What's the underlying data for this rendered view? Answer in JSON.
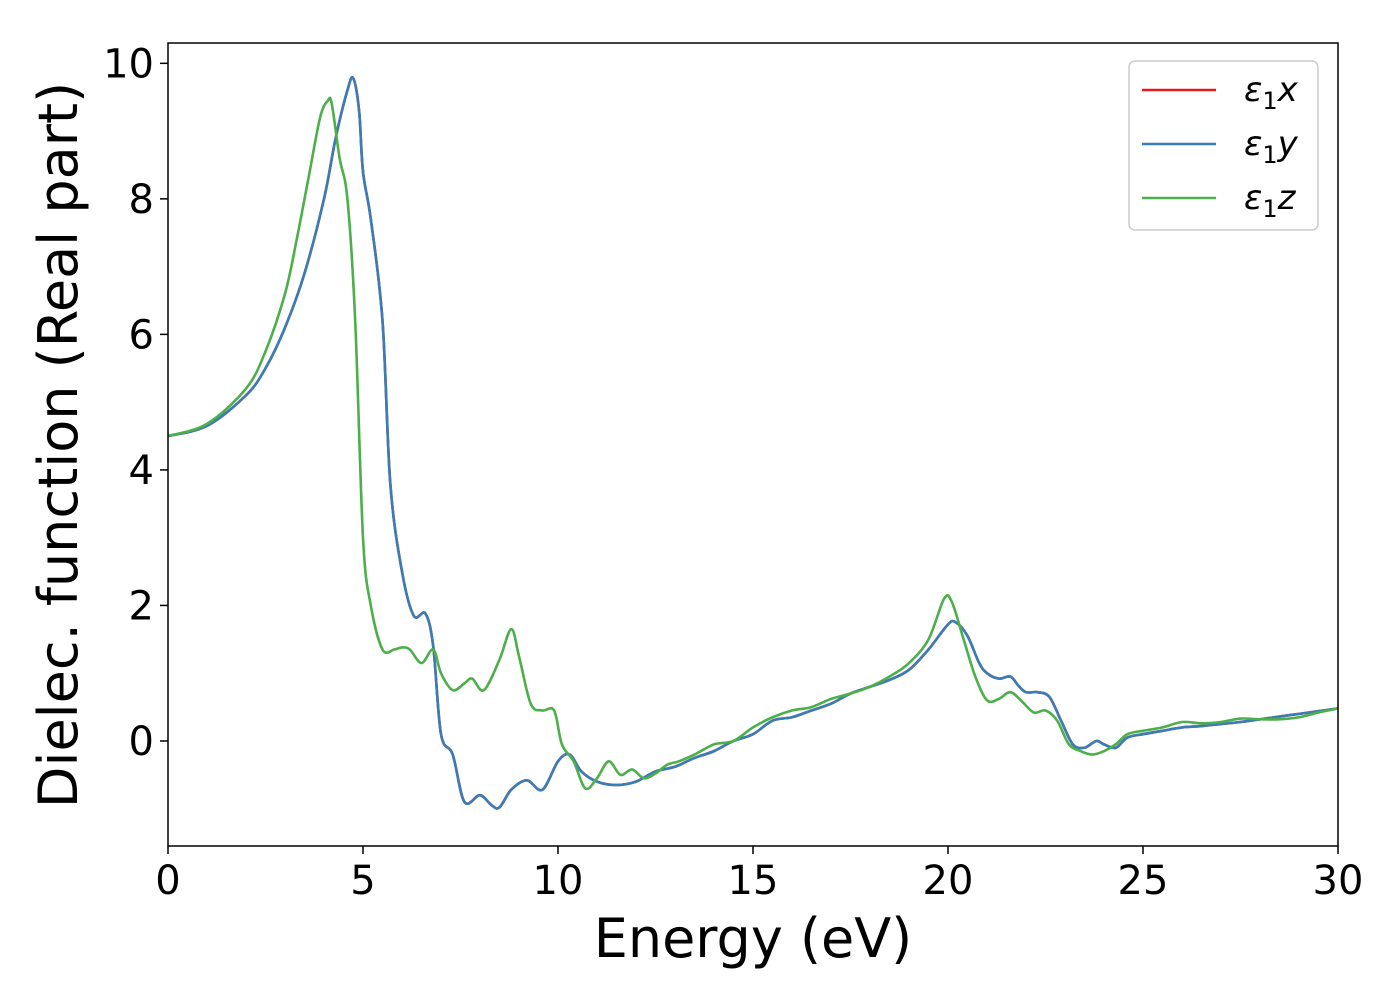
{
  "chart_data": {
    "type": "line",
    "xlabel": "Energy (eV)",
    "ylabel": "Dielec. function (Real part)",
    "xlim": [
      0,
      30
    ],
    "ylim": [
      -1.55,
      10.3
    ],
    "xticks": [
      0,
      5,
      10,
      15,
      20,
      25,
      30
    ],
    "xtick_labels": [
      "0",
      "5",
      "10",
      "15",
      "20",
      "25",
      "30"
    ],
    "yticks": [
      0,
      2,
      4,
      6,
      8,
      10
    ],
    "ytick_labels": [
      "0",
      "2",
      "4",
      "6",
      "8",
      "10"
    ],
    "grid": false,
    "legend_position": "top-right",
    "series": [
      {
        "name": "ε₁x",
        "legend_label": {
          "base": "ε",
          "sub": "1",
          "var": "x"
        },
        "color": "#e41a1c",
        "x": [
          0,
          1,
          2,
          2.5,
          3,
          3.5,
          4,
          4.3,
          4.6,
          4.75,
          4.9,
          5.0,
          5.2,
          5.5,
          5.7,
          6.0,
          6.3,
          6.6,
          6.8,
          7.0,
          7.3,
          7.6,
          8.0,
          8.3,
          8.5,
          8.8,
          9.2,
          9.6,
          10.0,
          10.3,
          10.6,
          11.0,
          11.5,
          12.0,
          12.5,
          13.0,
          13.5,
          14.0,
          14.5,
          15.0,
          15.5,
          16.0,
          16.5,
          17.0,
          17.5,
          18.0,
          18.5,
          19.0,
          19.5,
          20.0,
          20.2,
          20.5,
          20.8,
          21.0,
          21.3,
          21.6,
          21.8,
          22.0,
          22.3,
          22.6,
          22.9,
          23.2,
          23.5,
          23.8,
          24.0,
          24.3,
          24.6,
          25.0,
          25.5,
          26.0,
          26.5,
          27.0,
          27.5,
          28.0,
          28.5,
          29.0,
          29.5,
          30.0
        ],
        "y": [
          4.5,
          4.65,
          5.1,
          5.5,
          6.1,
          6.9,
          8.0,
          8.9,
          9.6,
          9.78,
          9.3,
          8.4,
          7.7,
          6.2,
          3.8,
          2.5,
          1.85,
          1.88,
          1.4,
          0.1,
          -0.2,
          -0.9,
          -0.8,
          -0.95,
          -0.98,
          -0.72,
          -0.58,
          -0.72,
          -0.3,
          -0.2,
          -0.45,
          -0.6,
          -0.65,
          -0.6,
          -0.45,
          -0.38,
          -0.25,
          -0.15,
          0.0,
          0.1,
          0.3,
          0.35,
          0.45,
          0.55,
          0.7,
          0.8,
          0.9,
          1.05,
          1.35,
          1.72,
          1.75,
          1.55,
          1.15,
          1.0,
          0.92,
          0.95,
          0.82,
          0.72,
          0.72,
          0.65,
          0.3,
          -0.05,
          -0.1,
          0.0,
          -0.05,
          -0.1,
          0.05,
          0.1,
          0.15,
          0.2,
          0.22,
          0.25,
          0.28,
          0.32,
          0.36,
          0.4,
          0.44,
          0.48
        ]
      },
      {
        "name": "ε₁y",
        "legend_label": {
          "base": "ε",
          "sub": "1",
          "var": "y"
        },
        "color": "#377eb8",
        "x": [
          0,
          1,
          2,
          2.5,
          3,
          3.5,
          4,
          4.3,
          4.6,
          4.75,
          4.9,
          5.0,
          5.2,
          5.5,
          5.7,
          6.0,
          6.3,
          6.6,
          6.8,
          7.0,
          7.3,
          7.6,
          8.0,
          8.3,
          8.5,
          8.8,
          9.2,
          9.6,
          10.0,
          10.3,
          10.6,
          11.0,
          11.5,
          12.0,
          12.5,
          13.0,
          13.5,
          14.0,
          14.5,
          15.0,
          15.5,
          16.0,
          16.5,
          17.0,
          17.5,
          18.0,
          18.5,
          19.0,
          19.5,
          20.0,
          20.2,
          20.5,
          20.8,
          21.0,
          21.3,
          21.6,
          21.8,
          22.0,
          22.3,
          22.6,
          22.9,
          23.2,
          23.5,
          23.8,
          24.0,
          24.3,
          24.6,
          25.0,
          25.5,
          26.0,
          26.5,
          27.0,
          27.5,
          28.0,
          28.5,
          29.0,
          29.5,
          30.0
        ],
        "y": [
          4.5,
          4.65,
          5.1,
          5.5,
          6.1,
          6.9,
          8.0,
          8.9,
          9.6,
          9.78,
          9.3,
          8.4,
          7.7,
          6.2,
          3.8,
          2.5,
          1.85,
          1.88,
          1.4,
          0.1,
          -0.2,
          -0.9,
          -0.8,
          -0.95,
          -0.98,
          -0.72,
          -0.58,
          -0.72,
          -0.3,
          -0.2,
          -0.45,
          -0.6,
          -0.65,
          -0.6,
          -0.45,
          -0.38,
          -0.25,
          -0.15,
          0.0,
          0.1,
          0.3,
          0.35,
          0.45,
          0.55,
          0.7,
          0.8,
          0.9,
          1.05,
          1.35,
          1.72,
          1.75,
          1.55,
          1.15,
          1.0,
          0.92,
          0.95,
          0.82,
          0.72,
          0.72,
          0.65,
          0.3,
          -0.05,
          -0.1,
          0.0,
          -0.05,
          -0.1,
          0.05,
          0.1,
          0.15,
          0.2,
          0.22,
          0.25,
          0.28,
          0.32,
          0.36,
          0.4,
          0.44,
          0.48
        ]
      },
      {
        "name": "ε₁z",
        "legend_label": {
          "base": "ε",
          "sub": "1",
          "var": "z"
        },
        "color": "#4daf4a",
        "x": [
          0,
          1,
          2,
          2.5,
          3,
          3.3,
          3.6,
          3.9,
          4.1,
          4.2,
          4.4,
          4.6,
          4.8,
          5.0,
          5.2,
          5.5,
          5.8,
          6.0,
          6.2,
          6.5,
          6.8,
          7.0,
          7.3,
          7.6,
          7.8,
          8.1,
          8.5,
          8.8,
          9.0,
          9.3,
          9.6,
          9.9,
          10.1,
          10.4,
          10.7,
          11.0,
          11.3,
          11.6,
          11.9,
          12.2,
          12.5,
          12.8,
          13.1,
          13.5,
          14.0,
          14.5,
          15.0,
          15.5,
          16.0,
          16.5,
          17.0,
          17.5,
          18.0,
          18.5,
          19.0,
          19.5,
          19.9,
          20.1,
          20.4,
          20.7,
          21.0,
          21.3,
          21.6,
          21.9,
          22.2,
          22.5,
          22.8,
          23.1,
          23.4,
          23.7,
          24.0,
          24.3,
          24.6,
          25.0,
          25.5,
          26.0,
          26.5,
          27.0,
          27.5,
          28.0,
          28.5,
          29.0,
          29.5,
          30.0
        ],
        "y": [
          4.5,
          4.68,
          5.2,
          5.75,
          6.6,
          7.4,
          8.3,
          9.2,
          9.45,
          9.4,
          8.6,
          8.0,
          6.2,
          3.0,
          2.0,
          1.35,
          1.35,
          1.38,
          1.35,
          1.15,
          1.35,
          1.0,
          0.75,
          0.85,
          0.92,
          0.75,
          1.2,
          1.65,
          1.25,
          0.55,
          0.45,
          0.45,
          -0.05,
          -0.3,
          -0.7,
          -0.55,
          -0.3,
          -0.5,
          -0.42,
          -0.55,
          -0.48,
          -0.35,
          -0.3,
          -0.2,
          -0.05,
          0.0,
          0.2,
          0.35,
          0.45,
          0.5,
          0.62,
          0.7,
          0.8,
          0.95,
          1.15,
          1.5,
          2.1,
          2.05,
          1.5,
          0.95,
          0.6,
          0.62,
          0.72,
          0.58,
          0.42,
          0.45,
          0.3,
          -0.05,
          -0.15,
          -0.2,
          -0.15,
          -0.05,
          0.1,
          0.15,
          0.2,
          0.28,
          0.26,
          0.28,
          0.33,
          0.32,
          0.32,
          0.35,
          0.42,
          0.48
        ]
      }
    ]
  }
}
